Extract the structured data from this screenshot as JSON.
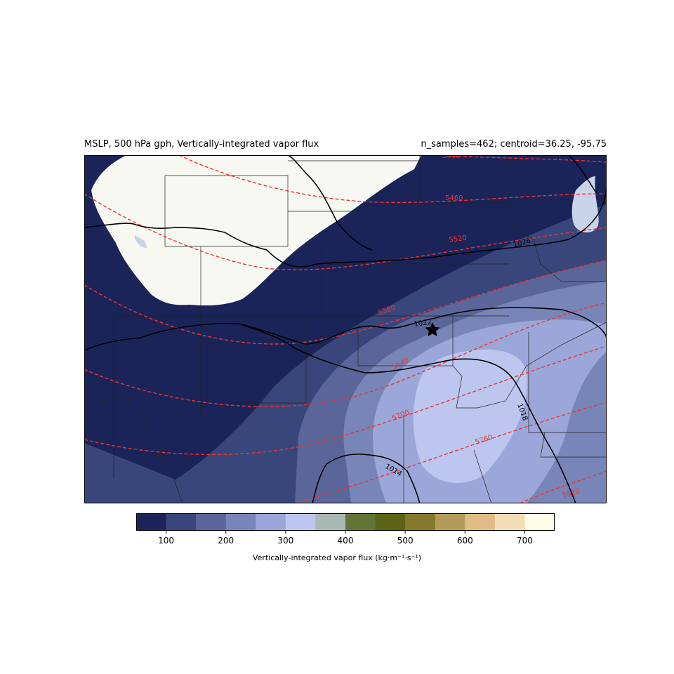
{
  "header": {
    "title_left": "MSLP, 500 hPa gph, Vertically-integrated vapor flux",
    "title_right": "n_samples=462; centroid=36.25, -95.75"
  },
  "map": {
    "center_marker": "star",
    "mslp_contours": [
      "1026",
      "1022",
      "1018",
      "1014"
    ],
    "gph_contours": [
      "5400",
      "5460",
      "5520",
      "5580",
      "5640",
      "5700",
      "5760",
      "5820"
    ],
    "colors": {
      "land_unshaded": "#f7f8f2",
      "mslp_line": "#000000",
      "gph_line": "#ee3333",
      "lake": "#c9d4ea"
    }
  },
  "colorbar": {
    "label": "Vertically-integrated vapor flux (kg·m⁻¹·s⁻¹)",
    "ticks": [
      "100",
      "200",
      "300",
      "400",
      "500",
      "600",
      "700"
    ],
    "levels": [
      50,
      100,
      150,
      200,
      250,
      300,
      350,
      400,
      450,
      500,
      550,
      600,
      650,
      700,
      750
    ],
    "colors": [
      "#1b2459",
      "#39467b",
      "#5a6699",
      "#7885b8",
      "#9ba7d8",
      "#bcc6ee",
      "#a9b7b6",
      "#637536",
      "#5b6314",
      "#84782d",
      "#b39c5b",
      "#dfbb86",
      "#f2ddb5",
      "#fcfce6"
    ]
  }
}
